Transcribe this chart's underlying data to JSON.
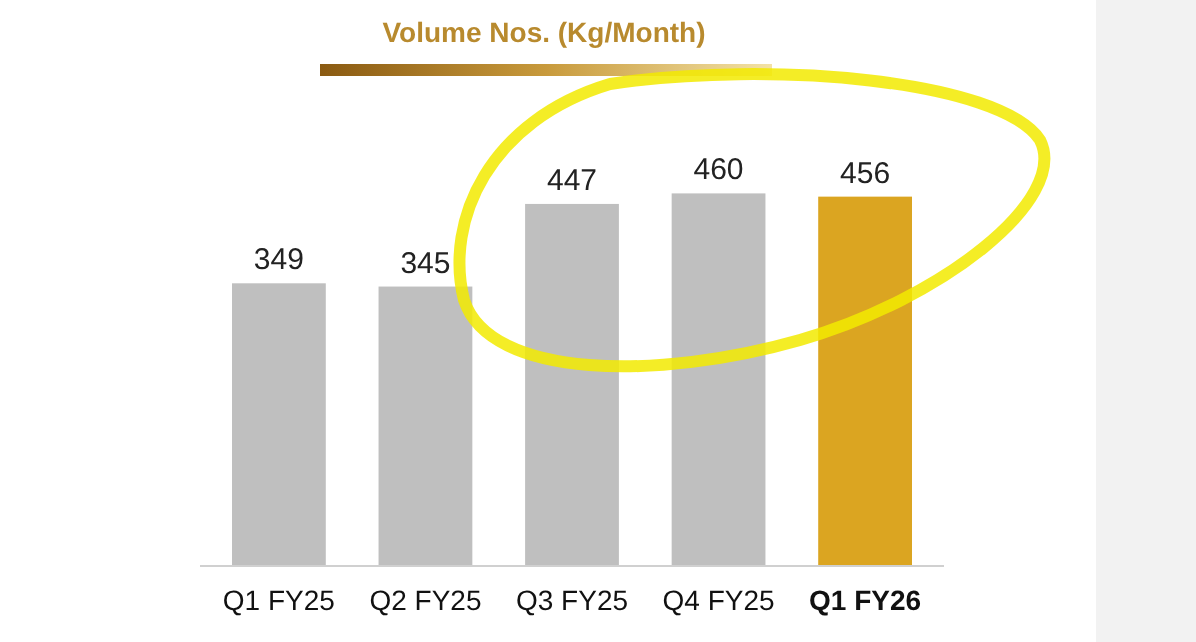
{
  "chart_data": {
    "type": "bar",
    "title": "Volume Nos. (Kg/Month)",
    "categories": [
      "Q1 FY25",
      "Q2 FY25",
      "Q3 FY25",
      "Q4 FY25",
      "Q1 FY26"
    ],
    "values": [
      349,
      345,
      447,
      460,
      456
    ],
    "colors": [
      "#bfbfbf",
      "#bfbfbf",
      "#bfbfbf",
      "#bfbfbf",
      "#dba521"
    ],
    "data_labels": true
  }
}
